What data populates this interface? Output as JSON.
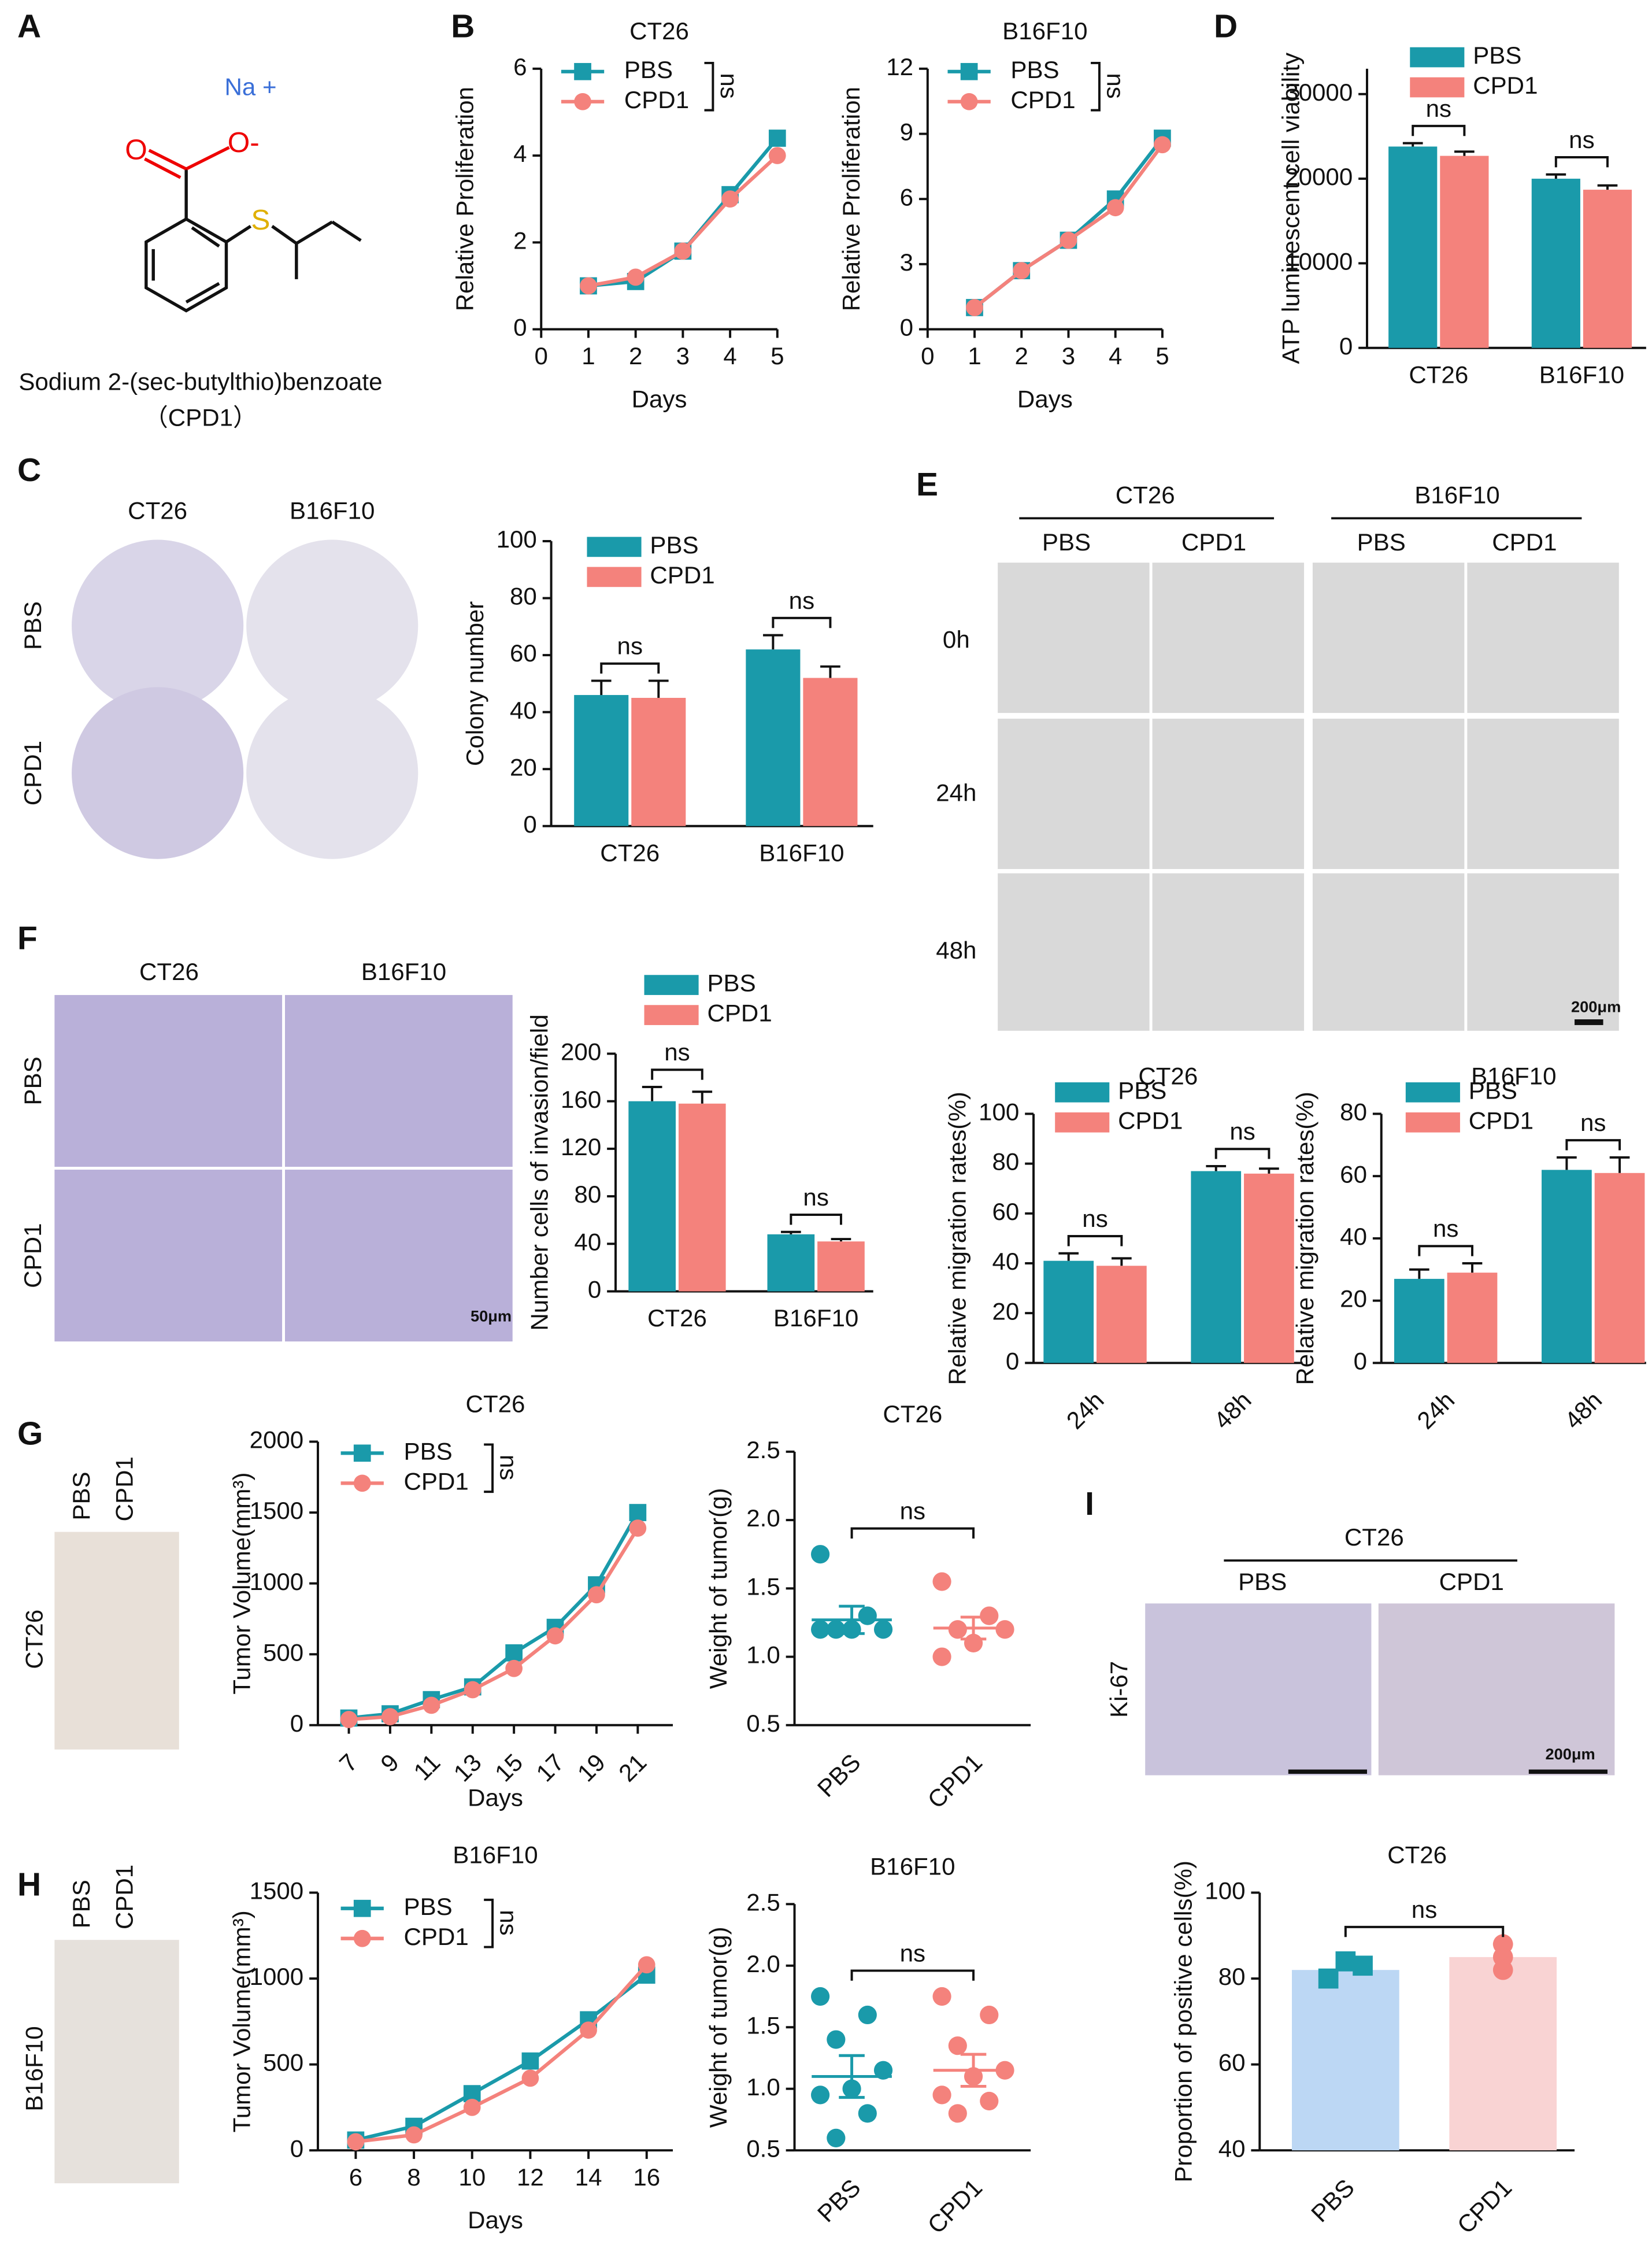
{
  "panel_labels": [
    "A",
    "B",
    "C",
    "D",
    "E",
    "F",
    "G",
    "H",
    "I"
  ],
  "compound": {
    "atoms": [
      "Na +",
      "O",
      "O-",
      "S"
    ],
    "name": "Sodium 2-(sec-butylthio)benzoate",
    "code": "（CPD1）"
  },
  "photos": {
    "C": {
      "columns": [
        "CT26",
        "B16F10"
      ],
      "rows": [
        "PBS",
        "CPD1"
      ]
    },
    "E": {
      "groups": [
        "CT26",
        "B16F10"
      ],
      "columns": [
        "PBS",
        "CPD1",
        "PBS",
        "CPD1"
      ],
      "rows": [
        "0h",
        "24h",
        "48h"
      ],
      "scale": "200μm"
    },
    "F": {
      "columns": [
        "CT26",
        "B16F10"
      ],
      "rows": [
        "PBS",
        "CPD1"
      ],
      "scale": "50μm"
    },
    "G": {
      "columns": [
        "PBS",
        "CPD1"
      ],
      "row": "CT26"
    },
    "H": {
      "columns": [
        "PBS",
        "CPD1"
      ],
      "row": "B16F10"
    },
    "I": {
      "group": "CT26",
      "columns": [
        "PBS",
        "CPD1"
      ],
      "row": "Ki-67",
      "scale": "200μm"
    }
  },
  "chart_data": [
    {
      "type": "line",
      "title": "CT26",
      "x_label": "Days",
      "y_label": "Relative Proliferation",
      "annotation": "ns",
      "x": [
        1,
        2,
        3,
        4,
        5
      ],
      "xlim": [
        0,
        5
      ],
      "xticks": [
        0,
        1,
        2,
        3,
        4,
        5
      ],
      "ylim": [
        0,
        6
      ],
      "yticks": [
        0,
        2,
        4,
        6
      ],
      "series": [
        {
          "name": "PBS",
          "color": "#1a9aaa",
          "marker": "square",
          "values": [
            1,
            1.1,
            1.8,
            3.1,
            4.4
          ]
        },
        {
          "name": "CPD1",
          "color": "#f4827c",
          "marker": "circle",
          "values": [
            1,
            1.2,
            1.8,
            3.0,
            4.0
          ]
        }
      ]
    },
    {
      "type": "line",
      "title": "B16F10",
      "x_label": "Days",
      "y_label": "Relative Proliferation",
      "annotation": "ns",
      "x": [
        1,
        2,
        3,
        4,
        5
      ],
      "xlim": [
        0,
        5
      ],
      "xticks": [
        0,
        1,
        2,
        3,
        4,
        5
      ],
      "ylim": [
        0,
        12
      ],
      "yticks": [
        0,
        3,
        6,
        9,
        12
      ],
      "series": [
        {
          "name": "PBS",
          "color": "#1a9aaa",
          "marker": "square",
          "values": [
            1,
            2.7,
            4.1,
            6.0,
            8.8
          ]
        },
        {
          "name": "CPD1",
          "color": "#f4827c",
          "marker": "circle",
          "values": [
            1,
            2.7,
            4.1,
            5.6,
            8.5
          ]
        }
      ]
    },
    {
      "type": "bar",
      "y_label": "ATP luminescent cell viability",
      "annotations": [
        "ns",
        "ns"
      ],
      "categories": [
        "CT26",
        "B16F10"
      ],
      "ylim": [
        0,
        33000
      ],
      "yticks": [
        0,
        10000,
        20000,
        30000
      ],
      "series": [
        {
          "name": "PBS",
          "color": "#1a9aaa",
          "values": [
            23800,
            20000
          ],
          "errors": [
            400,
            500
          ]
        },
        {
          "name": "CPD1",
          "color": "#f4827c",
          "values": [
            22700,
            18700
          ],
          "errors": [
            500,
            500
          ]
        }
      ]
    },
    {
      "type": "bar",
      "y_label": "Colony number",
      "annotations": [
        "ns",
        "ns"
      ],
      "categories": [
        "CT26",
        "B16F10"
      ],
      "ylim": [
        0,
        100
      ],
      "yticks": [
        0,
        20,
        40,
        60,
        80,
        100
      ],
      "series": [
        {
          "name": "PBS",
          "color": "#1a9aaa",
          "values": [
            46,
            62
          ],
          "errors": [
            5,
            5
          ]
        },
        {
          "name": "CPD1",
          "color": "#f4827c",
          "values": [
            45,
            52
          ],
          "errors": [
            6,
            4
          ]
        }
      ]
    },
    {
      "type": "bar",
      "y_label": "Number cells of invasion/field",
      "annotations": [
        "ns",
        "ns"
      ],
      "categories": [
        "CT26",
        "B16F10"
      ],
      "ylim": [
        0,
        200
      ],
      "yticks": [
        0,
        40,
        80,
        120,
        160,
        200
      ],
      "series": [
        {
          "name": "PBS",
          "color": "#1a9aaa",
          "values": [
            160,
            48
          ],
          "errors": [
            12,
            2
          ]
        },
        {
          "name": "CPD1",
          "color": "#f4827c",
          "values": [
            158,
            42
          ],
          "errors": [
            10,
            2
          ]
        }
      ]
    },
    {
      "type": "bar",
      "title": "CT26",
      "y_label": "Relative migration rates(%)",
      "annotations": [
        "ns",
        "ns"
      ],
      "categories": [
        "24h",
        "48h"
      ],
      "ylim": [
        0,
        100
      ],
      "yticks": [
        0,
        20,
        40,
        60,
        80,
        100
      ],
      "series": [
        {
          "name": "PBS",
          "color": "#1a9aaa",
          "values": [
            41,
            77
          ],
          "errors": [
            3,
            2
          ]
        },
        {
          "name": "CPD1",
          "color": "#f4827c",
          "values": [
            39,
            76
          ],
          "errors": [
            3,
            2
          ]
        }
      ]
    },
    {
      "type": "bar",
      "title": "B16F10",
      "y_label": "Relative migration rates(%)",
      "annotations": [
        "ns",
        "ns"
      ],
      "categories": [
        "24h",
        "48h"
      ],
      "ylim": [
        0,
        80
      ],
      "yticks": [
        0,
        20,
        40,
        60,
        80
      ],
      "series": [
        {
          "name": "PBS",
          "color": "#1a9aaa",
          "values": [
            27,
            62
          ],
          "errors": [
            3,
            4
          ]
        },
        {
          "name": "CPD1",
          "color": "#f4827c",
          "values": [
            29,
            61
          ],
          "errors": [
            3,
            5
          ]
        }
      ]
    },
    {
      "type": "line",
      "title": "CT26",
      "x_label": "Days",
      "y_label": "Tumor Volume(mm³)",
      "annotation": "ns",
      "x": [
        7,
        9,
        11,
        13,
        15,
        17,
        19,
        21
      ],
      "xlim": [
        5.5,
        22.7
      ],
      "xticks": [
        7,
        9,
        11,
        13,
        15,
        17,
        19,
        21
      ],
      "ylim": [
        0,
        2000
      ],
      "yticks": [
        0,
        500,
        1000,
        1500,
        2000
      ],
      "series": [
        {
          "name": "PBS",
          "color": "#1a9aaa",
          "marker": "square",
          "values": [
            50,
            80,
            180,
            270,
            510,
            690,
            990,
            1500
          ]
        },
        {
          "name": "CPD1",
          "color": "#f4827c",
          "marker": "circle",
          "values": [
            40,
            60,
            140,
            250,
            400,
            630,
            920,
            1390
          ]
        }
      ]
    },
    {
      "type": "strip",
      "title": "CT26",
      "y_label": "Weight of tumor(g)",
      "annotation": "ns",
      "categories": [
        "PBS",
        "CPD1"
      ],
      "colors": [
        "#1a9aaa",
        "#f4827c"
      ],
      "ylim": [
        0.5,
        2.5
      ],
      "yticks": [
        0.5,
        {
          "value": 1,
          "label": "1.0"
        },
        1.5,
        {
          "value": 2,
          "label": "2.0"
        },
        2.5
      ],
      "values": [
        [
          1.75,
          1.3,
          1.2,
          1.2,
          1.2,
          1.2
        ],
        [
          1.55,
          1.3,
          1.2,
          1.2,
          1.1,
          1.0
        ]
      ],
      "means": [
        1.27,
        1.21
      ],
      "sem": [
        0.1,
        0.08
      ]
    },
    {
      "type": "line",
      "title": "B16F10",
      "x_label": "Days",
      "y_label": "Tumor Volume(mm³)",
      "annotation": "ns",
      "x": [
        6,
        8,
        10,
        12,
        14,
        16
      ],
      "xlim": [
        4.7,
        16.9
      ],
      "xticks": [
        6,
        8,
        10,
        12,
        14,
        16
      ],
      "ylim": [
        0,
        1500
      ],
      "yticks": [
        0,
        500,
        1000,
        1500
      ],
      "series": [
        {
          "name": "PBS",
          "color": "#1a9aaa",
          "marker": "square",
          "values": [
            60,
            140,
            330,
            520,
            760,
            1020
          ]
        },
        {
          "name": "CPD1",
          "color": "#f4827c",
          "marker": "circle",
          "values": [
            50,
            90,
            250,
            420,
            700,
            1080
          ]
        }
      ]
    },
    {
      "type": "strip",
      "title": "B16F10",
      "y_label": "Weight of tumor(g)",
      "annotation": "ns",
      "categories": [
        "PBS",
        "CPD1"
      ],
      "colors": [
        "#1a9aaa",
        "#f4827c"
      ],
      "ylim": [
        0.5,
        2.5
      ],
      "yticks": [
        0.5,
        {
          "value": 1,
          "label": "1.0"
        },
        1.5,
        {
          "value": 2,
          "label": "2.0"
        },
        2.5
      ],
      "values": [
        [
          1.75,
          1.6,
          1.4,
          1.15,
          1.0,
          0.95,
          0.8,
          0.6
        ],
        [
          1.75,
          1.6,
          1.35,
          1.15,
          1.1,
          0.95,
          0.9,
          0.8
        ]
      ],
      "means": [
        1.1,
        1.15
      ],
      "sem": [
        0.17,
        0.13
      ]
    },
    {
      "type": "bar",
      "title": "CT26",
      "y_label": "Proportion of positive cells(%)",
      "annotation": "ns",
      "categories": [
        "PBS",
        "CPD1"
      ],
      "colors": [
        "#bcd7f4",
        "#f9d3d3"
      ],
      "point_colors": [
        "#1a9aaa",
        "#f4827c"
      ],
      "ylim": [
        40,
        100
      ],
      "yticks": [
        40,
        60,
        80,
        100
      ],
      "values": [
        82,
        85
      ],
      "errors": [
        1.5,
        3
      ],
      "points": [
        [
          80,
          84,
          83
        ],
        [
          88,
          85,
          82
        ]
      ]
    }
  ]
}
